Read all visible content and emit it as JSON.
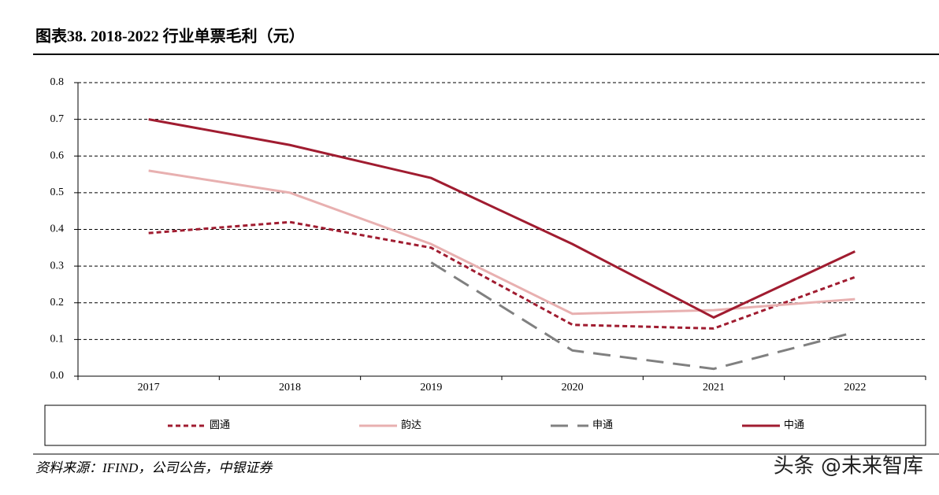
{
  "chart_data": {
    "type": "line",
    "title": "图表38. 2018-2022 行业单票毛利（元）",
    "source": "资料来源：IFIND，公司公告，中银证券",
    "watermark": "头条 @未来智库",
    "categories": [
      "2017",
      "2018",
      "2019",
      "2020",
      "2021",
      "2022"
    ],
    "series": [
      {
        "name": "圆通",
        "color": "#a01c30",
        "dash": "6,4",
        "width": 3,
        "values": [
          0.39,
          0.42,
          0.35,
          0.14,
          0.13,
          0.27
        ]
      },
      {
        "name": "韵达",
        "color": "#e8b0b0",
        "dash": "none",
        "width": 3,
        "values": [
          0.56,
          0.5,
          0.36,
          0.17,
          0.18,
          0.21
        ]
      },
      {
        "name": "申通",
        "color": "#808080",
        "dash": "22,12",
        "width": 3,
        "values": [
          null,
          null,
          0.31,
          0.07,
          0.02,
          0.12
        ]
      },
      {
        "name": "中通",
        "color": "#a01c30",
        "dash": "none",
        "width": 3,
        "values": [
          0.7,
          0.63,
          0.54,
          0.36,
          0.16,
          0.34
        ]
      }
    ],
    "ylim": [
      0,
      0.8
    ],
    "yticks": [
      {
        "value": 0,
        "label": "0.0"
      },
      0.1,
      0.2,
      0.3,
      0.4,
      0.5,
      0.6,
      0.7,
      0.8
    ],
    "grid": true
  }
}
